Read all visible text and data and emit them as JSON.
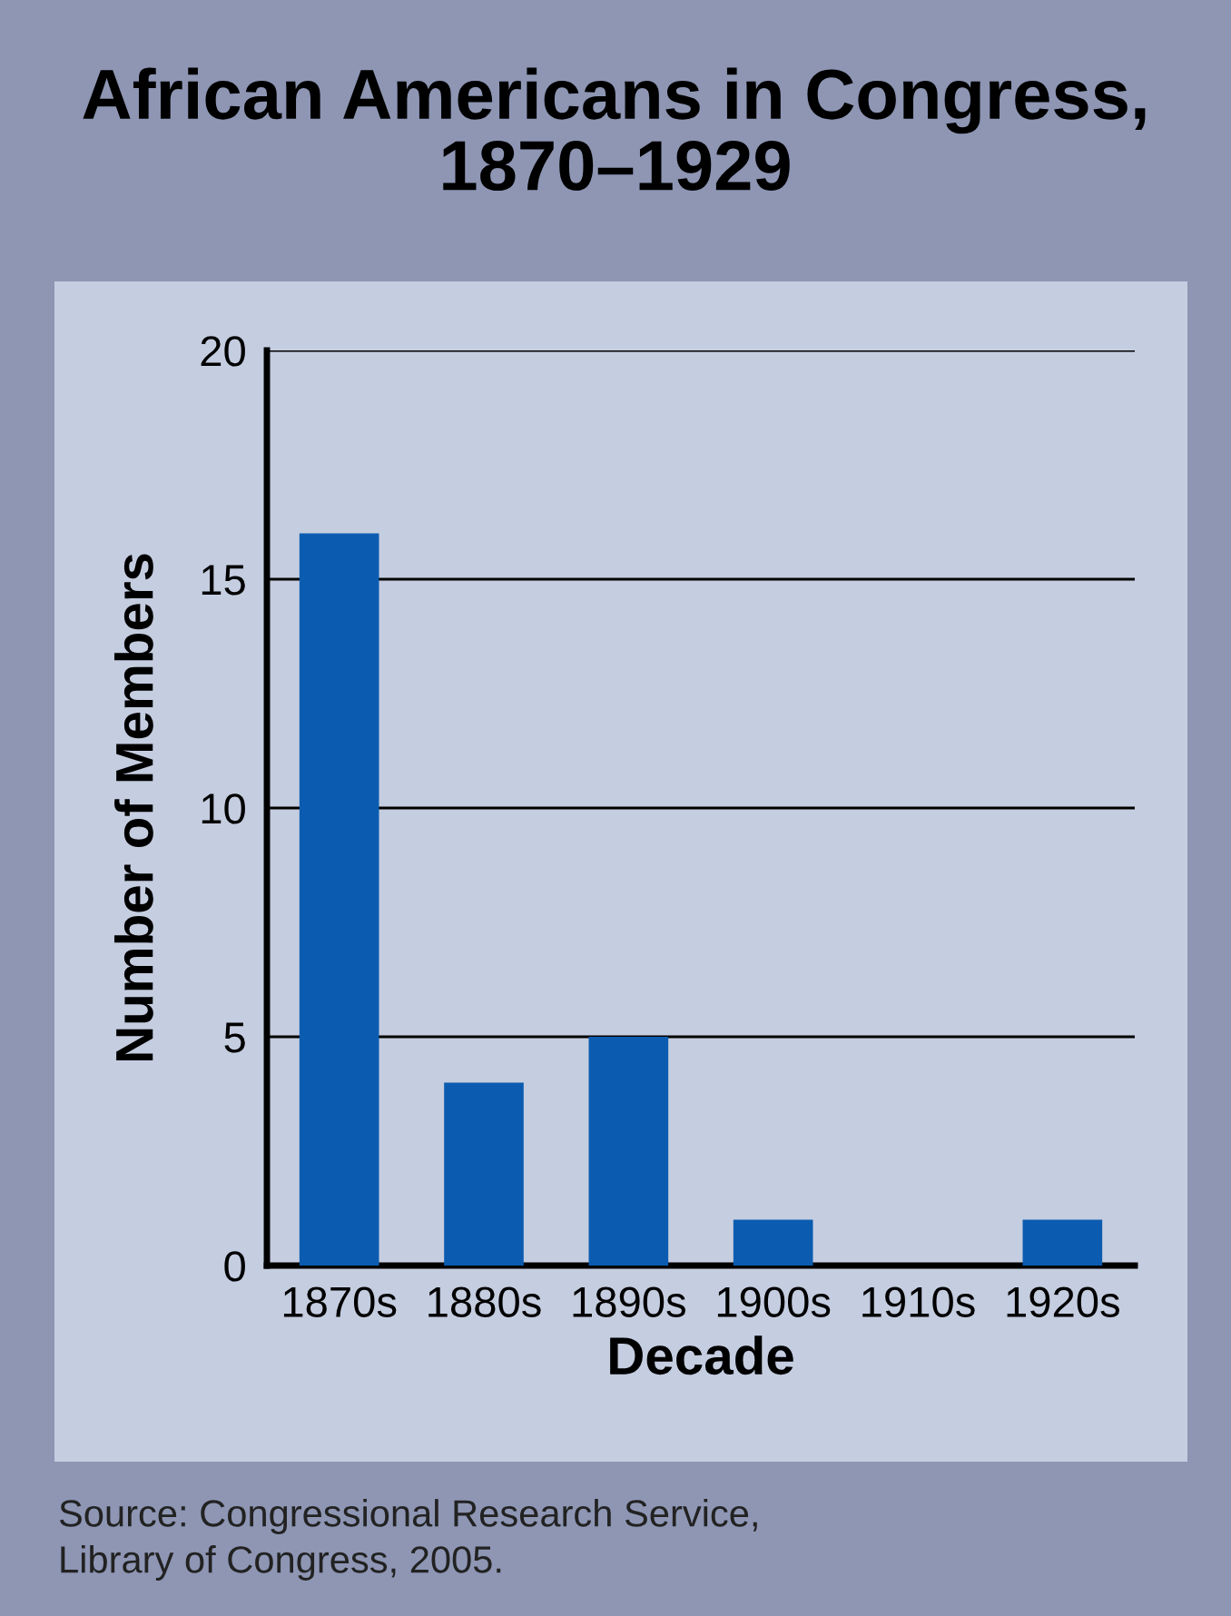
{
  "chart_data": {
    "type": "bar",
    "title": "African Americans in Congress,\n1870–1929",
    "xlabel": "Decade",
    "ylabel": "Number of Members",
    "categories": [
      "1870s",
      "1880s",
      "1890s",
      "1900s",
      "1910s",
      "1920s"
    ],
    "values": [
      16,
      4,
      5,
      1,
      0,
      1
    ],
    "color": "#0b5cb0",
    "ylim": [
      0,
      20
    ],
    "yticks": [
      0,
      5,
      10,
      15,
      20
    ],
    "grid": "y",
    "annotations": [
      "Source: Congressional Research Service,\nLibrary of Congress, 2005."
    ]
  }
}
